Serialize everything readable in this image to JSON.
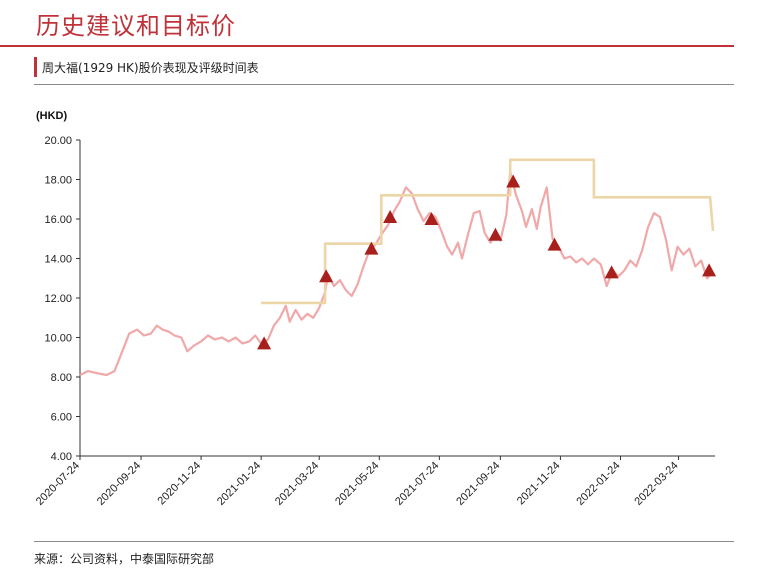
{
  "header": {
    "page_title": "历史建议和目标价",
    "chart_subtitle": "周大福(1929 HK)股价表现及评级时间表"
  },
  "footer": {
    "source_note": "来源：公司资料，中泰国际研究部"
  },
  "colors": {
    "accent": "#c0323a",
    "price_line": "#f0a8a8",
    "target_line": "#ecd6a8",
    "marker": "#a8201c"
  },
  "chart_data": {
    "type": "line",
    "y_unit": "(HKD)",
    "ylim": [
      4.0,
      20.0
    ],
    "y_ticks": [
      "4.00",
      "6.00",
      "8.00",
      "10.00",
      "12.00",
      "14.00",
      "16.00",
      "18.00",
      "20.00"
    ],
    "x_range": [
      "2020-07-24",
      "2022-04-30"
    ],
    "x_ticks": [
      "2020-07-24",
      "2020-09-24",
      "2020-11-24",
      "2021-01-24",
      "2021-03-24",
      "2021-05-24",
      "2021-07-24",
      "2021-09-24",
      "2021-11-24",
      "2022-01-24",
      "2022-03-24"
    ],
    "grid": false,
    "legend": "none",
    "series": [
      {
        "role": "share-price",
        "points": [
          [
            "2020-07-24",
            8.1
          ],
          [
            "2020-08-01",
            8.3
          ],
          [
            "2020-08-10",
            8.2
          ],
          [
            "2020-08-20",
            8.1
          ],
          [
            "2020-08-28",
            8.3
          ],
          [
            "2020-09-05",
            9.3
          ],
          [
            "2020-09-12",
            10.2
          ],
          [
            "2020-09-20",
            10.4
          ],
          [
            "2020-09-27",
            10.1
          ],
          [
            "2020-10-04",
            10.2
          ],
          [
            "2020-10-10",
            10.6
          ],
          [
            "2020-10-16",
            10.4
          ],
          [
            "2020-10-22",
            10.3
          ],
          [
            "2020-10-28",
            10.1
          ],
          [
            "2020-11-04",
            10.0
          ],
          [
            "2020-11-10",
            9.3
          ],
          [
            "2020-11-17",
            9.6
          ],
          [
            "2020-11-24",
            9.8
          ],
          [
            "2020-12-01",
            10.1
          ],
          [
            "2020-12-08",
            9.9
          ],
          [
            "2020-12-15",
            10.0
          ],
          [
            "2020-12-22",
            9.8
          ],
          [
            "2020-12-29",
            10.0
          ],
          [
            "2021-01-05",
            9.7
          ],
          [
            "2021-01-12",
            9.8
          ],
          [
            "2021-01-18",
            10.1
          ],
          [
            "2021-01-24",
            9.7
          ],
          [
            "2021-01-31",
            9.9
          ],
          [
            "2021-02-06",
            10.6
          ],
          [
            "2021-02-12",
            11.0
          ],
          [
            "2021-02-18",
            11.6
          ],
          [
            "2021-02-22",
            10.8
          ],
          [
            "2021-02-28",
            11.4
          ],
          [
            "2021-03-06",
            10.9
          ],
          [
            "2021-03-12",
            11.2
          ],
          [
            "2021-03-18",
            11.0
          ],
          [
            "2021-03-24",
            11.5
          ],
          [
            "2021-03-30",
            12.3
          ],
          [
            "2021-04-02",
            13.2
          ],
          [
            "2021-04-08",
            12.6
          ],
          [
            "2021-04-14",
            12.9
          ],
          [
            "2021-04-20",
            12.4
          ],
          [
            "2021-04-26",
            12.1
          ],
          [
            "2021-05-02",
            12.7
          ],
          [
            "2021-05-08",
            13.6
          ],
          [
            "2021-05-14",
            14.4
          ],
          [
            "2021-05-20",
            14.7
          ],
          [
            "2021-05-26",
            15.2
          ],
          [
            "2021-06-02",
            15.7
          ],
          [
            "2021-06-08",
            16.4
          ],
          [
            "2021-06-14",
            16.9
          ],
          [
            "2021-06-20",
            17.6
          ],
          [
            "2021-06-26",
            17.3
          ],
          [
            "2021-07-02",
            16.5
          ],
          [
            "2021-07-08",
            15.9
          ],
          [
            "2021-07-14",
            16.3
          ],
          [
            "2021-07-20",
            16.1
          ],
          [
            "2021-07-26",
            15.4
          ],
          [
            "2021-08-01",
            14.6
          ],
          [
            "2021-08-06",
            14.2
          ],
          [
            "2021-08-12",
            14.8
          ],
          [
            "2021-08-16",
            14.0
          ],
          [
            "2021-08-22",
            15.2
          ],
          [
            "2021-08-28",
            16.3
          ],
          [
            "2021-09-03",
            16.4
          ],
          [
            "2021-09-08",
            15.3
          ],
          [
            "2021-09-14",
            14.8
          ],
          [
            "2021-09-20",
            15.3
          ],
          [
            "2021-09-24",
            14.9
          ],
          [
            "2021-09-30",
            16.2
          ],
          [
            "2021-10-04",
            18.4
          ],
          [
            "2021-10-10",
            17.2
          ],
          [
            "2021-10-16",
            16.4
          ],
          [
            "2021-10-20",
            15.6
          ],
          [
            "2021-10-26",
            16.5
          ],
          [
            "2021-10-31",
            15.5
          ],
          [
            "2021-11-04",
            16.6
          ],
          [
            "2021-11-10",
            17.6
          ],
          [
            "2021-11-16",
            15.0
          ],
          [
            "2021-11-22",
            14.6
          ],
          [
            "2021-11-28",
            14.0
          ],
          [
            "2021-12-04",
            14.1
          ],
          [
            "2021-12-10",
            13.8
          ],
          [
            "2021-12-16",
            14.0
          ],
          [
            "2021-12-22",
            13.7
          ],
          [
            "2021-12-28",
            14.0
          ],
          [
            "2022-01-04",
            13.7
          ],
          [
            "2022-01-10",
            12.6
          ],
          [
            "2022-01-16",
            13.4
          ],
          [
            "2022-01-22",
            13.1
          ],
          [
            "2022-01-28",
            13.4
          ],
          [
            "2022-02-03",
            13.9
          ],
          [
            "2022-02-09",
            13.6
          ],
          [
            "2022-02-15",
            14.4
          ],
          [
            "2022-02-21",
            15.6
          ],
          [
            "2022-02-27",
            16.3
          ],
          [
            "2022-03-05",
            16.1
          ],
          [
            "2022-03-11",
            15.0
          ],
          [
            "2022-03-17",
            13.4
          ],
          [
            "2022-03-23",
            14.6
          ],
          [
            "2022-03-29",
            14.2
          ],
          [
            "2022-04-04",
            14.5
          ],
          [
            "2022-04-10",
            13.6
          ],
          [
            "2022-04-16",
            13.9
          ],
          [
            "2022-04-22",
            13.0
          ],
          [
            "2022-04-28",
            13.3
          ]
        ]
      },
      {
        "role": "target-price",
        "points": [
          [
            "2021-01-24",
            11.75
          ],
          [
            "2021-03-30",
            11.75
          ],
          [
            "2021-03-30",
            14.75
          ],
          [
            "2021-05-26",
            14.75
          ],
          [
            "2021-05-26",
            17.2
          ],
          [
            "2021-10-04",
            17.2
          ],
          [
            "2021-10-04",
            19.0
          ],
          [
            "2021-12-28",
            19.0
          ],
          [
            "2021-12-28",
            17.1
          ],
          [
            "2022-04-25",
            17.1
          ],
          [
            "2022-04-28",
            15.4
          ]
        ]
      }
    ],
    "rating_markers": [
      [
        "2021-01-27",
        9.7
      ],
      [
        "2021-03-31",
        13.1
      ],
      [
        "2021-05-16",
        14.5
      ],
      [
        "2021-06-04",
        16.1
      ],
      [
        "2021-07-16",
        16.0
      ],
      [
        "2021-09-19",
        15.2
      ],
      [
        "2021-10-07",
        17.9
      ],
      [
        "2021-11-18",
        14.7
      ],
      [
        "2022-01-15",
        13.3
      ],
      [
        "2022-04-24",
        13.4
      ]
    ]
  }
}
